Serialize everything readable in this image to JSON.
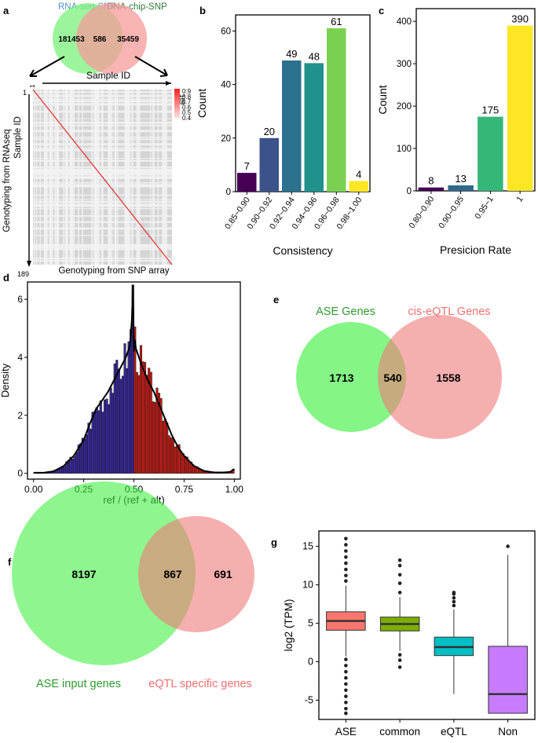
{
  "panels": {
    "a": {
      "letter": "a",
      "venn": {
        "left_label": "RNA-seq-SNP",
        "right_label": "DNA-chip-SNP",
        "left_only": "181453",
        "overlap": "586",
        "right_only": "35459",
        "left_color": "#4f8fd0",
        "right_color": "#2f7a3a"
      },
      "heatmap": {
        "x_label": "Sample ID",
        "y_label_1": "Genotyping from RNAseq",
        "y_label_2": "Sample ID",
        "bottom_label": "Genotyping from SNP array",
        "start": "1",
        "end": "189",
        "legend": [
          "0.9",
          "0.8",
          "0.7",
          "0.6",
          "0.5",
          "0.4"
        ]
      }
    },
    "b": {
      "letter": "b"
    },
    "c": {
      "letter": "c"
    },
    "d": {
      "letter": "d"
    },
    "e": {
      "letter": "e",
      "venn": {
        "left_label": "ASE Genes",
        "right_label": "cis-eQTL Genes",
        "left_only": "1713",
        "overlap": "540",
        "right_only": "1558",
        "left_color": "#2e9a2e",
        "right_color": "#f07070"
      }
    },
    "f": {
      "letter": "f",
      "venn": {
        "left_label": "ASE input genes",
        "right_label": "eQTL specific genes",
        "left_only": "8197",
        "overlap": "867",
        "right_only": "691",
        "left_color": "#2e9a2e",
        "right_color": "#f07070"
      }
    },
    "g": {
      "letter": "g"
    }
  },
  "chart_data": [
    {
      "id": "b",
      "type": "bar",
      "title": "",
      "categories": [
        "0.85~0.90",
        "0.90~0.92",
        "0.92~0.94",
        "0.94~0.96",
        "0.96~0.98",
        "0.98~1.00"
      ],
      "values": [
        7,
        20,
        49,
        48,
        61,
        4
      ],
      "value_labels": [
        "7",
        "20",
        "49",
        "48",
        "61",
        "4"
      ],
      "colors": [
        "#440154",
        "#3b528b",
        "#2c728e",
        "#21918c",
        "#7ad151",
        "#fde725"
      ],
      "xlabel": "Consistency",
      "ylabel": "Count",
      "ylim": [
        0,
        66
      ],
      "yticks": [
        0,
        20,
        40,
        60
      ],
      "ytick_labels": [
        "0",
        "20",
        "40",
        "60"
      ]
    },
    {
      "id": "c",
      "type": "bar",
      "title": "",
      "categories": [
        "0.80~0.90",
        "0.90~0.95",
        "0.95~1",
        "1"
      ],
      "values": [
        8,
        13,
        175,
        390
      ],
      "value_labels": [
        "8",
        "13",
        "175",
        "390"
      ],
      "colors": [
        "#440154",
        "#31688e",
        "#35b779",
        "#fde725"
      ],
      "xlabel": "Presicion Rate",
      "ylabel": "Count",
      "ylim": [
        0,
        430
      ],
      "yticks": [
        0,
        100,
        200,
        300,
        400
      ],
      "ytick_labels": [
        "0",
        "100",
        "200",
        "300",
        "400"
      ]
    },
    {
      "id": "d",
      "type": "histogram",
      "title": "",
      "xlabel": "ref / (ref + alt)",
      "ylabel": "Density",
      "xlim": [
        -0.03,
        1.03
      ],
      "ylim": [
        -0.2,
        6.6
      ],
      "xticks": [
        0,
        0.25,
        0.5,
        0.75,
        1
      ],
      "xtick_labels": [
        "0.00",
        "0.25",
        "0.50",
        "0.75",
        "1.00"
      ],
      "yticks": [
        0,
        2,
        4,
        6
      ],
      "ytick_labels": [
        "0",
        "2",
        "4",
        "6"
      ],
      "bin_width": 0.01,
      "left_color": "#3a2a9a",
      "right_color": "#c0201a",
      "density_x": [
        0,
        0.05,
        0.1,
        0.15,
        0.2,
        0.25,
        0.28,
        0.31,
        0.34,
        0.37,
        0.4,
        0.43,
        0.46,
        0.48,
        0.49,
        0.495,
        0.5,
        0.505,
        0.51,
        0.52,
        0.54,
        0.57,
        0.6,
        0.63,
        0.66,
        0.69,
        0.72,
        0.75,
        0.8,
        0.85,
        0.9,
        0.95,
        0.98,
        1.0
      ],
      "density_y": [
        0.02,
        0.02,
        0.07,
        0.25,
        0.6,
        1.15,
        1.7,
        2.2,
        2.5,
        2.8,
        3.2,
        3.6,
        4.0,
        4.4,
        5.3,
        6.5,
        4.2,
        4.6,
        4.3,
        4.1,
        3.7,
        3.2,
        2.8,
        2.3,
        1.8,
        1.3,
        0.9,
        0.6,
        0.25,
        0.08,
        0.03,
        0.03,
        0.05,
        0.15
      ]
    },
    {
      "id": "g",
      "type": "box",
      "title": "",
      "categories": [
        "ASE",
        "common",
        "eQTL",
        "Non"
      ],
      "colors": [
        "#f8766d",
        "#7cae00",
        "#00bfc4",
        "#c77cff"
      ],
      "q1": [
        4.1,
        4.0,
        0.8,
        -6.7
      ],
      "median": [
        5.3,
        4.9,
        1.9,
        -4.2
      ],
      "q3": [
        6.5,
        5.8,
        3.2,
        2.0
      ],
      "whisker_low": [
        0.7,
        1.4,
        -4.2,
        -6.7
      ],
      "whisker_high": [
        9.9,
        8.4,
        6.8,
        13.9
      ],
      "outliers": [
        [
          10.5,
          11.2,
          12.0,
          12.8,
          13.6,
          14.4,
          15.2,
          16.0,
          0.3,
          -0.5,
          -1.3,
          -2.1,
          -2.9,
          -3.7,
          -4.5,
          -5.3,
          -6.1,
          -6.7
        ],
        [
          9.0,
          10.2,
          11.3,
          12.5,
          13.2,
          0.9,
          0.2,
          -0.7
        ],
        [
          7.3,
          7.8,
          8.3,
          8.8,
          9.0
        ],
        [
          15.0
        ]
      ],
      "xlabel": "",
      "ylabel": "log2 (TPM)",
      "ylim": [
        -7.5,
        17
      ],
      "yticks": [
        -5,
        0,
        5,
        10,
        15
      ],
      "ytick_labels": [
        "-5",
        "0",
        "5",
        "10",
        "15"
      ]
    }
  ]
}
